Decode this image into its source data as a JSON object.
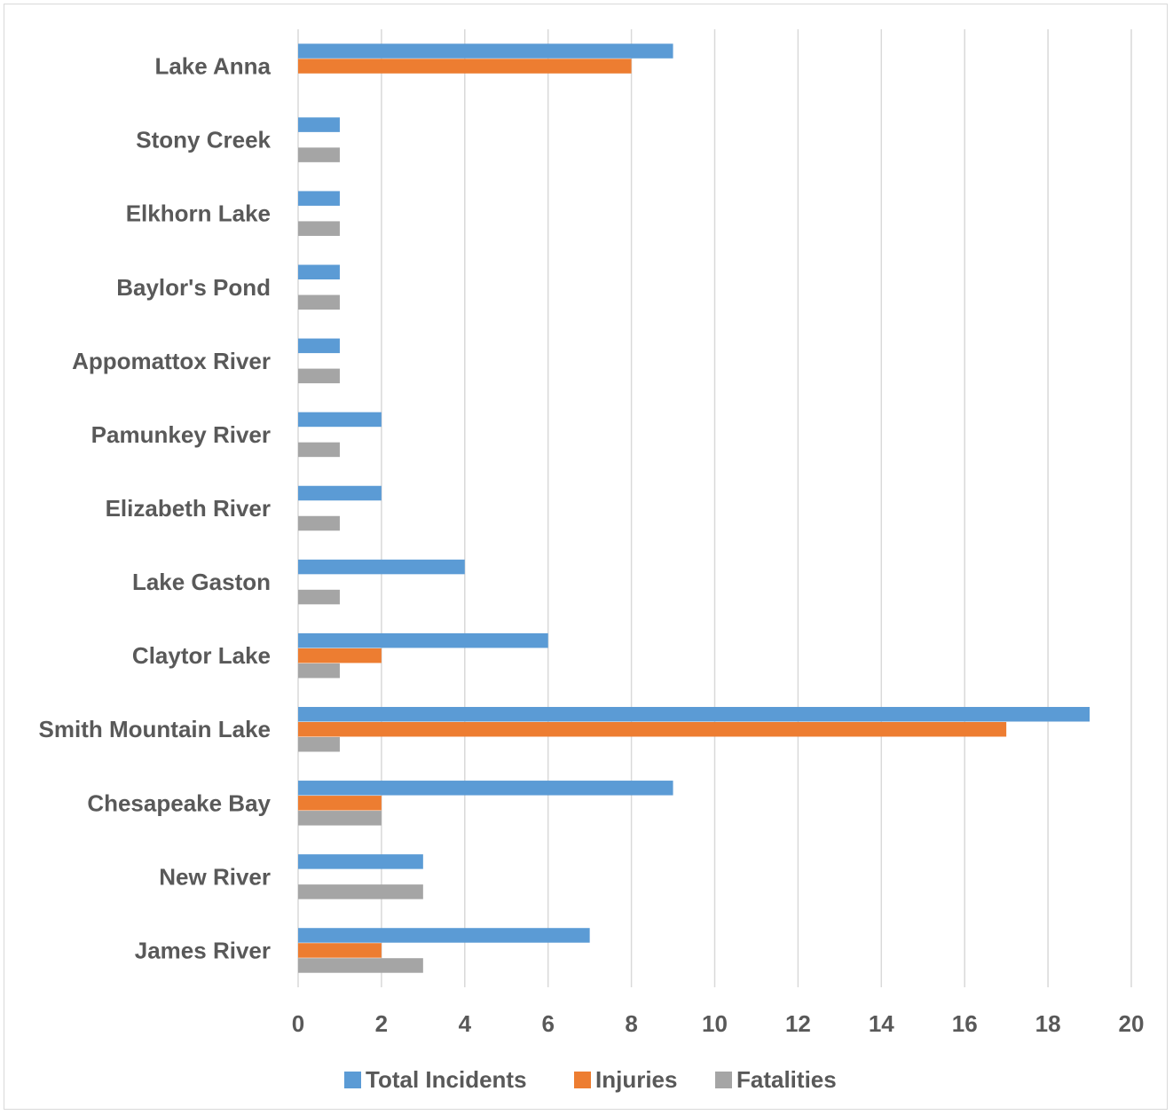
{
  "chart_data": {
    "type": "bar",
    "orientation": "horizontal",
    "categories": [
      "Lake Anna",
      "Stony Creek",
      "Elkhorn Lake",
      "Baylor's Pond",
      "Appomattox River",
      "Pamunkey River",
      "Elizabeth River",
      "Lake Gaston",
      "Claytor Lake",
      "Smith Mountain Lake",
      "Chesapeake Bay",
      "New River",
      "James River"
    ],
    "series": [
      {
        "name": "Total Incidents",
        "color": "#5b9bd5",
        "values": [
          9,
          1,
          1,
          1,
          1,
          2,
          2,
          4,
          6,
          19,
          9,
          3,
          7
        ]
      },
      {
        "name": "Injuries",
        "color": "#ed7d31",
        "values": [
          8,
          0,
          0,
          0,
          0,
          0,
          0,
          0,
          2,
          17,
          2,
          0,
          2
        ]
      },
      {
        "name": "Fatalities",
        "color": "#a5a5a5",
        "values": [
          0,
          1,
          1,
          1,
          1,
          1,
          1,
          1,
          1,
          1,
          2,
          3,
          3
        ]
      }
    ],
    "xlim": [
      0,
      20
    ],
    "x_ticks": [
      "0",
      "2",
      "4",
      "6",
      "8",
      "10",
      "12",
      "14",
      "16",
      "18",
      "20"
    ],
    "title": "",
    "xlabel": "",
    "ylabel": "",
    "grid": "vertical",
    "legend_position": "bottom",
    "gridline_color": "#d9d9d9"
  }
}
